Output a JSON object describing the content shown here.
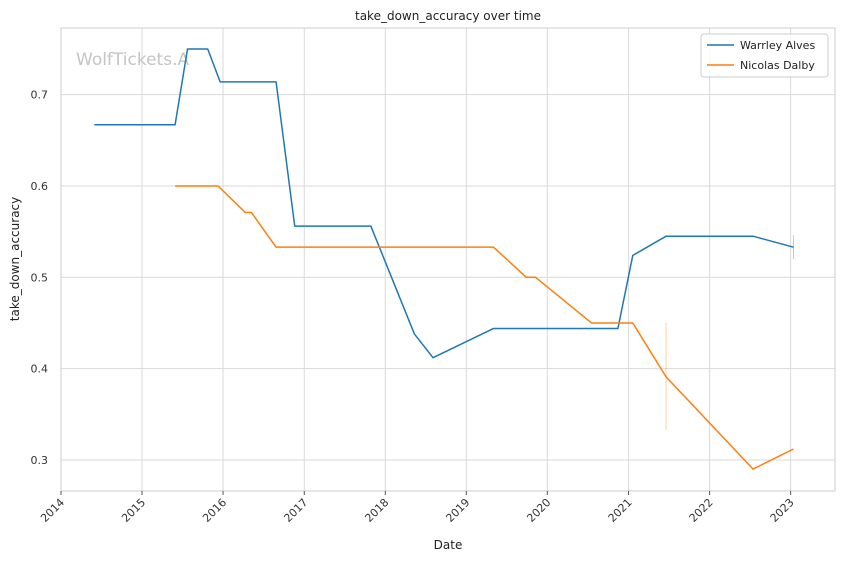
{
  "chart_data": {
    "type": "line",
    "title": "take_down_accuracy over time",
    "xlabel": "Date",
    "ylabel": "take_down_accuracy",
    "watermark": "WolfTickets.A",
    "xlim": [
      "2014-01-01",
      "2023-07-20"
    ],
    "ylim": [
      0.266,
      0.773
    ],
    "x_ticks": [
      "2014",
      "2015",
      "2016",
      "2017",
      "2018",
      "2019",
      "2020",
      "2021",
      "2022",
      "2023"
    ],
    "y_ticks": [
      "0.3",
      "0.4",
      "0.5",
      "0.6",
      "0.7"
    ],
    "grid": true,
    "legend_position": "top-right",
    "series": [
      {
        "name": "Warrley Alves",
        "color": "#1f77b4",
        "points": [
          [
            "2014-05-31",
            0.667
          ],
          [
            "2015-05-30",
            0.667
          ],
          [
            "2015-07-25",
            0.75
          ],
          [
            "2015-10-24",
            0.75
          ],
          [
            "2015-12-19",
            0.714
          ],
          [
            "2016-08-27",
            0.714
          ],
          [
            "2016-11-19",
            0.556
          ],
          [
            "2017-10-28",
            0.556
          ],
          [
            "2018-05-12",
            0.438
          ],
          [
            "2018-08-04",
            0.412
          ],
          [
            "2019-05-04",
            0.444
          ],
          [
            "2020-11-14",
            0.444
          ],
          [
            "2021-01-20",
            0.524
          ],
          [
            "2021-06-19",
            0.545
          ],
          [
            "2022-07-16",
            0.545
          ],
          [
            "2023-01-14",
            0.533
          ]
        ]
      },
      {
        "name": "Nicolas Dalby",
        "color": "#ff7f0e",
        "points": [
          [
            "2015-05-30",
            0.6
          ],
          [
            "2015-12-10",
            0.6
          ],
          [
            "2016-04-10",
            0.571
          ],
          [
            "2016-05-08",
            0.571
          ],
          [
            "2016-08-27",
            0.533
          ],
          [
            "2019-05-04",
            0.533
          ],
          [
            "2019-09-28",
            0.5
          ],
          [
            "2019-11-09",
            0.5
          ],
          [
            "2020-07-18",
            0.45
          ],
          [
            "2021-01-20",
            0.45
          ],
          [
            "2021-06-19",
            0.391
          ],
          [
            "2022-07-16",
            0.29
          ],
          [
            "2023-01-14",
            0.312
          ]
        ]
      }
    ],
    "error_marks": [
      {
        "color": "#1f77b4",
        "x": "2023-01-14",
        "low": 0.52,
        "high": 0.546
      },
      {
        "color": "#ff7f0e",
        "x": "2021-06-19",
        "low": 0.333,
        "high": 0.45
      }
    ]
  }
}
